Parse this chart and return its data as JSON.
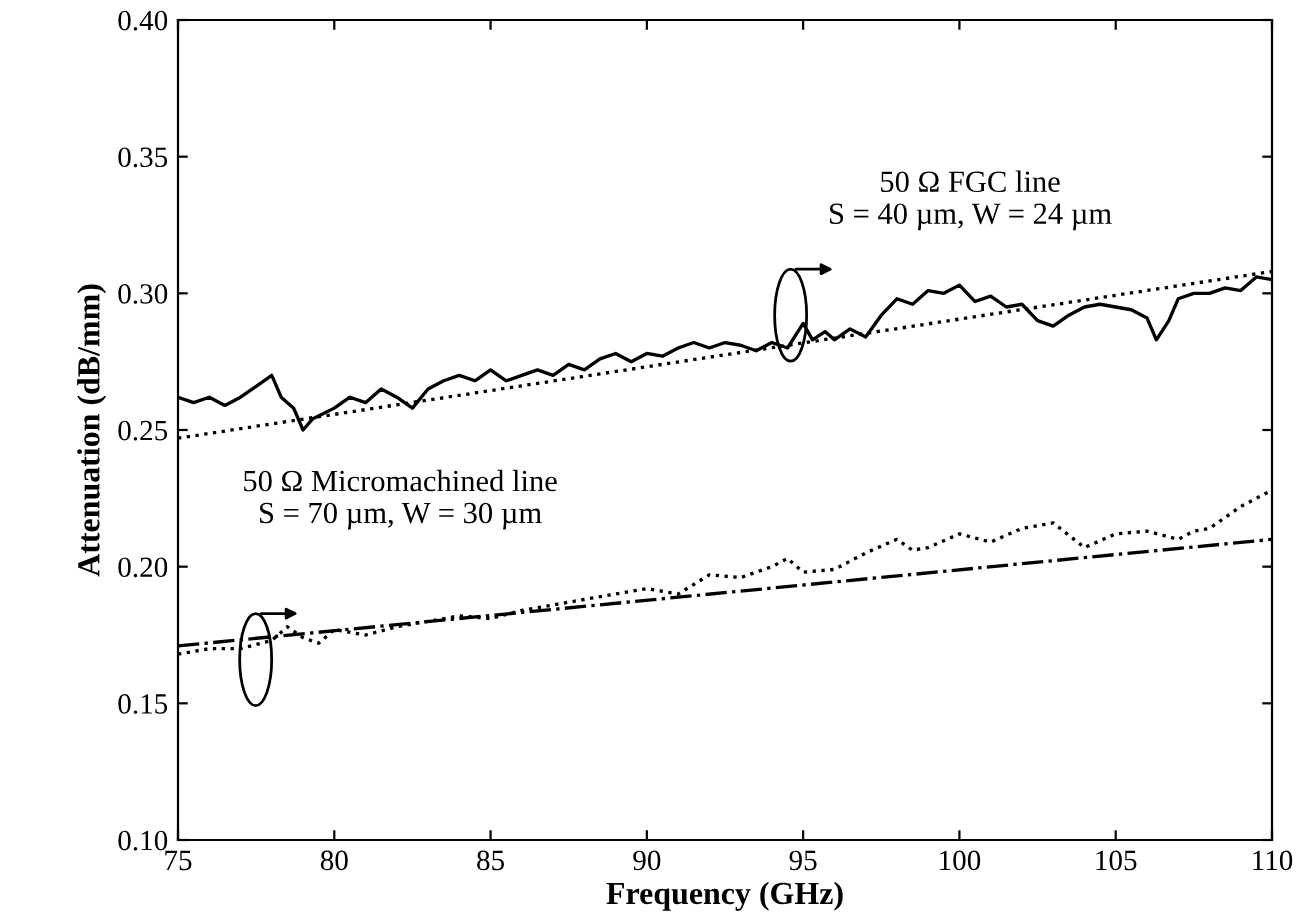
{
  "chart_data": {
    "type": "line",
    "xlabel": "Frequency (GHz)",
    "ylabel": "Attenuation (dB/mm)",
    "xlim": [
      75,
      110
    ],
    "xticks": [
      75,
      80,
      85,
      90,
      95,
      100,
      105,
      110
    ],
    "ylim": [
      0.1,
      0.4
    ],
    "yticks": [
      {
        "value": 0.1,
        "label": "0.10"
      },
      {
        "value": 0.15,
        "label": "0.15"
      },
      {
        "value": 0.2,
        "label": "0.20"
      },
      {
        "value": 0.25,
        "label": "0.25"
      },
      {
        "value": 0.3,
        "label": "0.30"
      },
      {
        "value": 0.35,
        "label": "0.35"
      },
      {
        "value": 0.4,
        "label": "0.40"
      }
    ],
    "grid": false,
    "legend": false,
    "series": [
      {
        "color": "#000000",
        "line_style": "solid",
        "x": [
          75,
          75.5,
          76,
          76.5,
          77,
          77.5,
          78,
          78.3,
          78.7,
          79,
          79.3,
          80,
          80.5,
          81,
          81.5,
          82,
          82.5,
          83,
          83.5,
          84,
          84.5,
          85,
          85.5,
          86,
          86.5,
          87,
          87.5,
          88,
          88.5,
          89,
          89.5,
          90,
          90.5,
          91,
          91.5,
          92,
          92.5,
          93,
          93.5,
          94,
          94.5,
          95,
          95.3,
          95.7,
          96,
          96.5,
          97,
          97.5,
          98,
          98.5,
          99,
          99.5,
          100,
          100.5,
          101,
          101.5,
          102,
          102.5,
          103,
          103.5,
          104,
          104.5,
          105,
          105.5,
          106,
          106.3,
          106.7,
          107,
          107.5,
          108,
          108.5,
          109,
          109.5,
          110
        ],
        "values": [
          0.262,
          0.26,
          0.262,
          0.259,
          0.262,
          0.266,
          0.27,
          0.262,
          0.258,
          0.25,
          0.254,
          0.258,
          0.262,
          0.26,
          0.265,
          0.262,
          0.258,
          0.265,
          0.268,
          0.27,
          0.268,
          0.272,
          0.268,
          0.27,
          0.272,
          0.27,
          0.274,
          0.272,
          0.276,
          0.278,
          0.275,
          0.278,
          0.277,
          0.28,
          0.282,
          0.28,
          0.282,
          0.281,
          0.279,
          0.282,
          0.28,
          0.289,
          0.283,
          0.286,
          0.283,
          0.287,
          0.284,
          0.292,
          0.298,
          0.296,
          0.301,
          0.3,
          0.303,
          0.297,
          0.299,
          0.295,
          0.296,
          0.29,
          0.288,
          0.292,
          0.295,
          0.296,
          0.295,
          0.294,
          0.291,
          0.283,
          0.29,
          0.298,
          0.3,
          0.3,
          0.302,
          0.301,
          0.306,
          0.305
        ]
      },
      {
        "color": "#000000",
        "line_style": "dotted",
        "x": [
          75,
          110
        ],
        "values": [
          0.247,
          0.308
        ]
      },
      {
        "color": "#000000",
        "line_style": "dotted",
        "x": [
          75,
          76,
          77,
          78,
          78.5,
          79,
          79.5,
          80,
          81,
          82,
          83,
          84,
          85,
          86,
          87,
          88,
          89,
          90,
          91,
          92,
          93,
          94,
          94.5,
          95,
          96,
          97,
          98,
          98.5,
          99,
          100,
          101,
          102,
          103,
          104,
          105,
          106,
          107,
          107.5,
          108,
          109,
          110
        ],
        "values": [
          0.168,
          0.17,
          0.17,
          0.173,
          0.178,
          0.174,
          0.172,
          0.177,
          0.175,
          0.178,
          0.18,
          0.182,
          0.181,
          0.184,
          0.186,
          0.188,
          0.19,
          0.192,
          0.19,
          0.197,
          0.196,
          0.2,
          0.203,
          0.198,
          0.199,
          0.205,
          0.21,
          0.206,
          0.207,
          0.212,
          0.209,
          0.214,
          0.216,
          0.207,
          0.212,
          0.213,
          0.21,
          0.213,
          0.214,
          0.222,
          0.228
        ]
      },
      {
        "color": "#000000",
        "line_style": "dashdot",
        "x": [
          75,
          110
        ],
        "values": [
          0.171,
          0.21
        ]
      }
    ],
    "annotations": [
      "50 Ω FGC line\nS = 40 µm, W = 24 µm",
      "50 Ω Micromachined line\nS = 70 µm, W = 30 µm"
    ]
  }
}
